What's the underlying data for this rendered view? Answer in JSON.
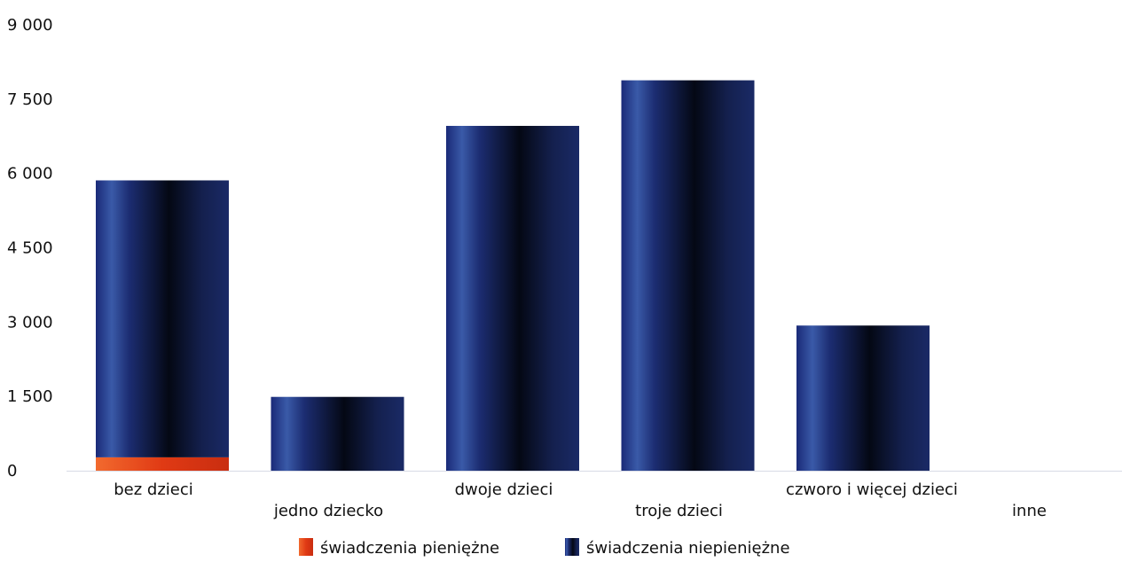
{
  "chart_data": {
    "type": "bar",
    "stacked": true,
    "categories": [
      "bez dzieci",
      "jedno dziecko",
      "dwoje dzieci",
      "troje dzieci",
      "czworo i więcej dzieci",
      "inne"
    ],
    "series": [
      {
        "name": "świadczenia pieniężne",
        "color": "#e8401c",
        "values": [
          270,
          0,
          0,
          0,
          0,
          0
        ]
      },
      {
        "name": "świadczenia niepieniężne",
        "color": "#0e1a4f",
        "values": [
          5590,
          1490,
          6960,
          7880,
          2930,
          0
        ]
      }
    ],
    "ylim": [
      0,
      9000
    ],
    "yticks": [
      0,
      1500,
      3000,
      4500,
      6000,
      7500,
      9000
    ],
    "ytick_labels": [
      "0",
      "1 500",
      "3 000",
      "4 500",
      "6 000",
      "7 500",
      "9 000"
    ],
    "grid": false,
    "legend_position": "bottom-center",
    "title": "",
    "xlabel": "",
    "ylabel": ""
  }
}
